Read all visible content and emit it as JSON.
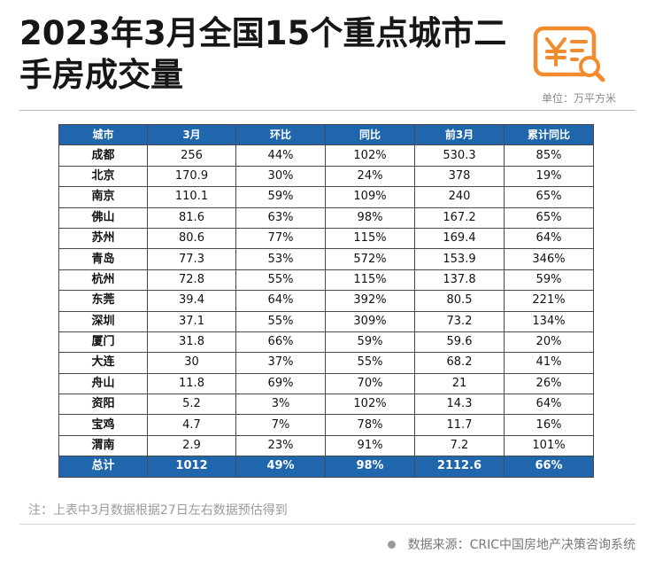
{
  "header": {
    "title": "2023年3月全国15个重点城市二手房成交量",
    "unit": "单位：万平方米"
  },
  "colors": {
    "header_bg": "#1f66ad",
    "logo_orange": "#f28a2e"
  },
  "icons": {
    "logo": "yen-document-magnifier-icon"
  },
  "table": {
    "columns": [
      "城市",
      "3月",
      "环比",
      "同比",
      "前3月",
      "累计同比"
    ],
    "rows": [
      [
        "成都",
        "256",
        "44%",
        "102%",
        "530.3",
        "85%"
      ],
      [
        "北京",
        "170.9",
        "30%",
        "24%",
        "378",
        "19%"
      ],
      [
        "南京",
        "110.1",
        "59%",
        "109%",
        "240",
        "65%"
      ],
      [
        "佛山",
        "81.6",
        "63%",
        "98%",
        "167.2",
        "65%"
      ],
      [
        "苏州",
        "80.6",
        "77%",
        "115%",
        "169.4",
        "64%"
      ],
      [
        "青岛",
        "77.3",
        "53%",
        "572%",
        "153.9",
        "346%"
      ],
      [
        "杭州",
        "72.8",
        "55%",
        "115%",
        "137.8",
        "59%"
      ],
      [
        "东莞",
        "39.4",
        "64%",
        "392%",
        "80.5",
        "221%"
      ],
      [
        "深圳",
        "37.1",
        "55%",
        "309%",
        "73.2",
        "134%"
      ],
      [
        "厦门",
        "31.8",
        "66%",
        "59%",
        "59.6",
        "20%"
      ],
      [
        "大连",
        "30",
        "37%",
        "55%",
        "68.2",
        "41%"
      ],
      [
        "舟山",
        "11.8",
        "69%",
        "70%",
        "21",
        "26%"
      ],
      [
        "资阳",
        "5.2",
        "3%",
        "102%",
        "14.3",
        "64%"
      ],
      [
        "宝鸡",
        "4.7",
        "7%",
        "78%",
        "11.7",
        "16%"
      ],
      [
        "渭南",
        "2.9",
        "23%",
        "91%",
        "7.2",
        "101%"
      ]
    ],
    "total": [
      "总计",
      "1012",
      "49%",
      "98%",
      "2112.6",
      "66%"
    ]
  },
  "footer": {
    "note": "注：上表中3月数据根据27日左右数据预估得到",
    "source": "数据来源：CRIC中国房地产决策咨询系统"
  }
}
